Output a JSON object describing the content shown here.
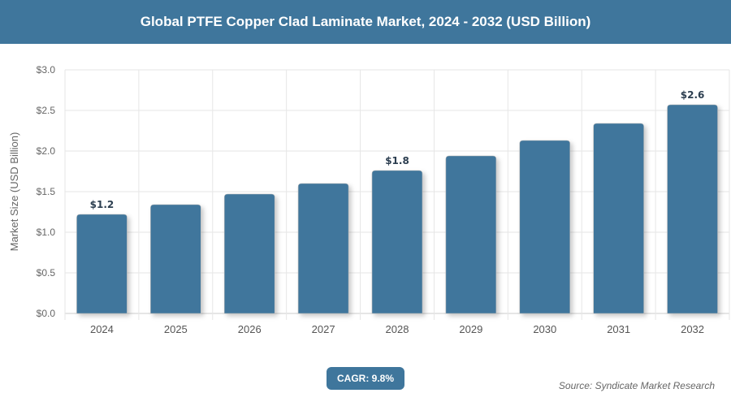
{
  "header": {
    "title": "Global PTFE Copper Clad Laminate Market, 2024 - 2032 (USD Billion)"
  },
  "chart_data": {
    "type": "bar",
    "title": "Global PTFE Copper Clad Laminate Market, 2024 - 2032 (USD Billion)",
    "xlabel": "",
    "ylabel": "Market Size (USD Billion)",
    "categories": [
      "2024",
      "2025",
      "2026",
      "2027",
      "2028",
      "2029",
      "2030",
      "2031",
      "2032"
    ],
    "values": [
      1.22,
      1.34,
      1.47,
      1.6,
      1.76,
      1.94,
      2.13,
      2.34,
      2.57
    ],
    "data_labels": {
      "0": "$1.2",
      "4": "$1.8",
      "8": "$2.6"
    },
    "ylim": [
      0,
      3.0
    ],
    "yticks": [
      "$0.0",
      "$0.5",
      "$1.0",
      "$1.5",
      "$2.0",
      "$2.5",
      "$3.0"
    ],
    "grid": true,
    "bar_color": "#3f769c"
  },
  "footer": {
    "cagr": "CAGR: 9.8%",
    "source": "Source: Syndicate Market Research"
  }
}
